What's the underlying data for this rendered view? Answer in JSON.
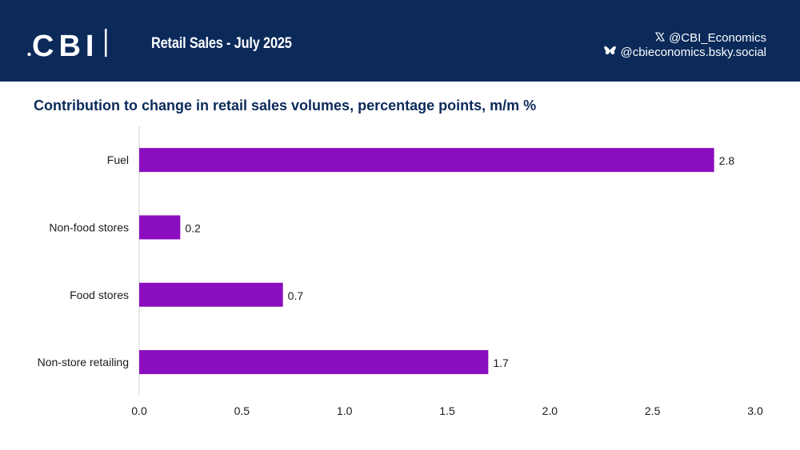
{
  "header": {
    "logo_text": "CBI",
    "subtitle": "Retail Sales - July 2025",
    "social": [
      {
        "icon": "x-icon",
        "handle": "@CBI_Economics"
      },
      {
        "icon": "bluesky-butterfly-icon",
        "handle": "@cbieconomics.bsky.social"
      }
    ]
  },
  "colors": {
    "header_bg": "#0b2a5a",
    "bar": "#8a0ebf",
    "title": "#0b2a5a"
  },
  "chart_data": {
    "type": "bar",
    "orientation": "horizontal",
    "title": "Contribution to change in retail sales volumes, percentage points, m/m %",
    "categories": [
      "Fuel",
      "Non-food stores",
      "Food stores",
      "Non-store retailing"
    ],
    "values": [
      2.8,
      0.2,
      0.7,
      1.7
    ],
    "value_labels": [
      "2.8",
      "0.2",
      "0.7",
      "1.7"
    ],
    "xlim": [
      0,
      3
    ],
    "xticks": [
      "0.0",
      "0.5",
      "1.0",
      "1.5",
      "2.0",
      "2.5",
      "3.0"
    ],
    "xlabel": "",
    "ylabel": "",
    "grid": false
  }
}
